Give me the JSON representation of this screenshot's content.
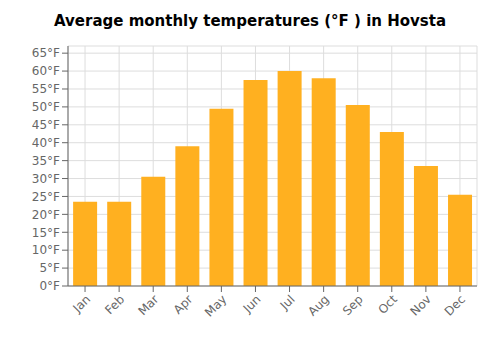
{
  "chart_data": {
    "type": "bar",
    "title": "Average monthly temperatures (°F ) in Hovsta",
    "categories": [
      "Jan",
      "Feb",
      "Mar",
      "Apr",
      "May",
      "Jun",
      "Jul",
      "Aug",
      "Sep",
      "Oct",
      "Nov",
      "Dec"
    ],
    "values": [
      23.5,
      23.5,
      30.5,
      39,
      49.5,
      57.5,
      60,
      58,
      50.5,
      43,
      33.5,
      25.5
    ],
    "color": "#FFB020",
    "ylim": [
      0,
      67
    ],
    "yticks": [
      {
        "value": 0,
        "label": "0°F"
      },
      {
        "value": 5,
        "label": "5°F"
      },
      {
        "value": 10,
        "label": "10°F"
      },
      {
        "value": 15,
        "label": "15°F"
      },
      {
        "value": 20,
        "label": "20°F"
      },
      {
        "value": 25,
        "label": "25°F"
      },
      {
        "value": 30,
        "label": "30°F"
      },
      {
        "value": 35,
        "label": "35°F"
      },
      {
        "value": 40,
        "label": "40°F"
      },
      {
        "value": 45,
        "label": "45°F"
      },
      {
        "value": 50,
        "label": "50°F"
      },
      {
        "value": 55,
        "label": "55°F"
      },
      {
        "value": 60,
        "label": "60°F"
      },
      {
        "value": 65,
        "label": "65°F"
      }
    ],
    "grid": true
  }
}
